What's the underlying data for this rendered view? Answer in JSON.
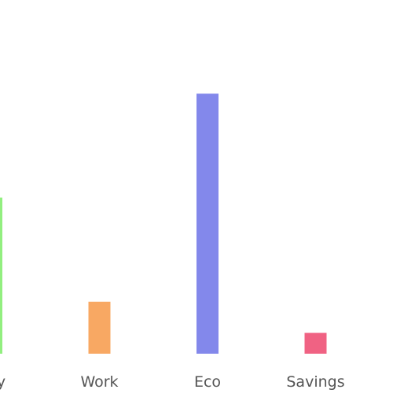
{
  "chart_data": {
    "type": "bar",
    "categories": [
      "Buy",
      "Work",
      "Eco",
      "Savings"
    ],
    "values": [
      30,
      10,
      50,
      4
    ],
    "colors": [
      "#92ef80",
      "#f8a863",
      "#8388eb",
      "#f06283"
    ],
    "ylim": [
      0,
      68
    ],
    "grid": false,
    "legend": "none",
    "title": "",
    "xlabel": "",
    "ylabel": ""
  }
}
